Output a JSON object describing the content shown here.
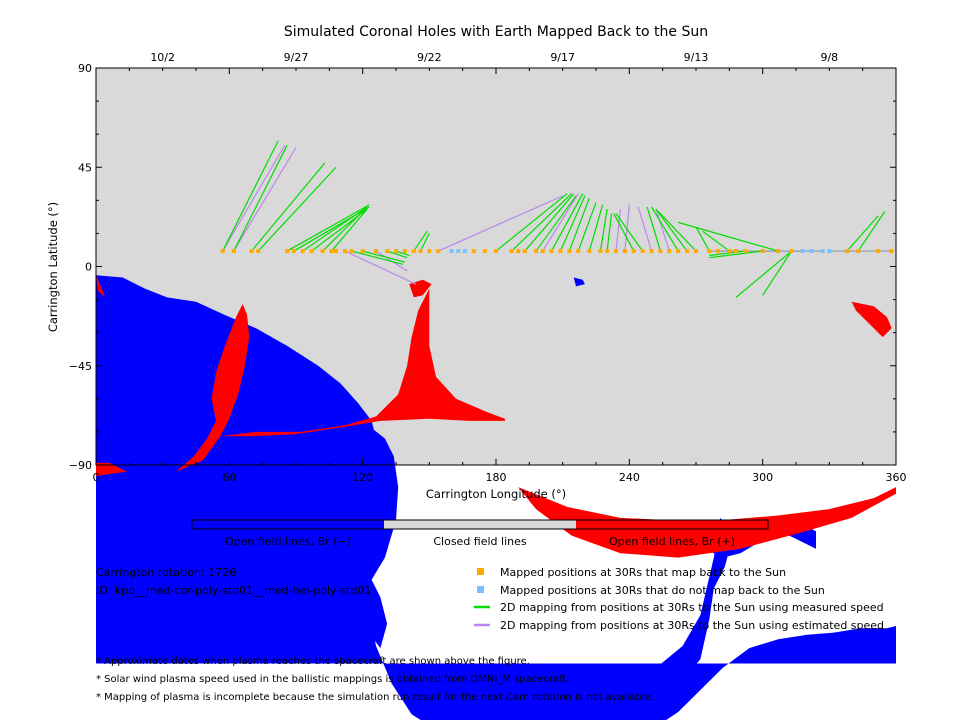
{
  "chart_data": {
    "type": "map",
    "title": "Simulated Coronal Holes with Earth Mapped Back to the Sun",
    "xlabel": "Carrington Longitude (°)",
    "ylabel": "Carrington Latitude (°)",
    "xlim": [
      0,
      360
    ],
    "ylim": [
      -90,
      90
    ],
    "x_ticks": [
      "0",
      "60",
      "120",
      "180",
      "240",
      "300",
      "360"
    ],
    "y_ticks": [
      "−90",
      "−45",
      "0",
      "45",
      "90"
    ],
    "date_ticks": [
      {
        "label": "10/2",
        "lon": 30
      },
      {
        "label": "9/27",
        "lon": 90
      },
      {
        "label": "9/22",
        "lon": 150
      },
      {
        "label": "9/17",
        "lon": 210
      },
      {
        "label": "9/13",
        "lon": 270
      },
      {
        "label": "9/8",
        "lon": 330
      }
    ],
    "colors": {
      "open_negative": "#0000ff",
      "closed": "#d9d9d9",
      "open_positive": "#ff0000",
      "mapped": "#ffaa00",
      "not_mapped": "#7fbfff",
      "measured": "#00dd00",
      "estimated": "#bb88ee"
    },
    "legend_bar": {
      "open_negative_label": "Open field lines, Br (−)",
      "closed_label": "Closed field lines",
      "open_positive_label": "Open field lines, Br (+)"
    },
    "spacecraft_latitude": 7,
    "mapped_lons": [
      57,
      62,
      70,
      73,
      86,
      89,
      93,
      97,
      102,
      106,
      108,
      112,
      115,
      120,
      126,
      131,
      135,
      139,
      143,
      146,
      150,
      154,
      170,
      175,
      180,
      187,
      190,
      193,
      198,
      201,
      205,
      209,
      213,
      217,
      222,
      227,
      230,
      234,
      238,
      242,
      246,
      250,
      254,
      258,
      262,
      266,
      270,
      276,
      280,
      285,
      288,
      292,
      300,
      307,
      313,
      338,
      343,
      352,
      358
    ],
    "not_mapped_lons": [
      160,
      163,
      166,
      318,
      322,
      327,
      330
    ],
    "measured_mappings": [
      [
        57,
        7,
        82,
        57
      ],
      [
        62,
        7,
        86,
        55
      ],
      [
        70,
        7,
        103,
        47
      ],
      [
        73,
        7,
        108,
        45
      ],
      [
        86,
        7,
        123,
        28
      ],
      [
        89,
        7,
        123,
        27
      ],
      [
        93,
        7,
        122,
        27
      ],
      [
        97,
        7,
        122,
        26
      ],
      [
        102,
        7,
        121,
        26
      ],
      [
        106,
        7,
        122,
        26
      ],
      [
        115,
        7,
        138,
        1
      ],
      [
        120,
        7,
        139,
        2
      ],
      [
        131,
        7,
        140,
        4
      ],
      [
        135,
        7,
        141,
        5
      ],
      [
        143,
        7,
        149,
        16
      ],
      [
        146,
        7,
        150,
        15
      ],
      [
        180,
        7,
        212,
        33
      ],
      [
        187,
        7,
        214,
        33
      ],
      [
        193,
        7,
        215,
        33
      ],
      [
        198,
        7,
        216,
        32
      ],
      [
        205,
        7,
        219,
        33
      ],
      [
        209,
        7,
        220,
        32
      ],
      [
        213,
        7,
        222,
        31
      ],
      [
        217,
        7,
        225,
        29
      ],
      [
        222,
        7,
        228,
        28
      ],
      [
        227,
        7,
        230,
        26
      ],
      [
        230,
        7,
        232,
        24
      ],
      [
        242,
        7,
        233,
        24
      ],
      [
        246,
        7,
        234,
        24
      ],
      [
        254,
        7,
        248,
        27
      ],
      [
        262,
        7,
        250,
        27
      ],
      [
        266,
        7,
        252,
        26
      ],
      [
        270,
        7,
        253,
        25
      ],
      [
        276,
        7,
        270,
        18
      ],
      [
        285,
        7,
        273,
        16
      ],
      [
        307,
        7,
        262,
        20
      ],
      [
        292,
        7,
        276,
        5
      ],
      [
        300,
        7,
        276,
        4
      ],
      [
        313,
        7,
        288,
        -14
      ],
      [
        313,
        7,
        300,
        -13
      ],
      [
        343,
        7,
        355,
        25
      ],
      [
        338,
        7,
        352,
        23
      ]
    ],
    "estimated_mappings": [
      [
        57,
        7,
        85,
        55
      ],
      [
        62,
        7,
        90,
        54
      ],
      [
        112,
        7,
        144,
        -8
      ],
      [
        126,
        7,
        140,
        -2
      ],
      [
        154,
        7,
        210,
        32
      ],
      [
        201,
        7,
        217,
        33
      ],
      [
        234,
        7,
        236,
        26
      ],
      [
        238,
        7,
        240,
        28
      ],
      [
        250,
        7,
        244,
        27
      ],
      [
        258,
        7,
        252,
        26
      ]
    ],
    "gray_mappings": [
      [
        276,
        7,
        318,
        7
      ],
      [
        280,
        7,
        322,
        7
      ],
      [
        288,
        7,
        327,
        7
      ],
      [
        358,
        7,
        330,
        7
      ]
    ],
    "negative_regions": [
      [
        [
          0,
          94
        ],
        [
          12,
          95
        ],
        [
          22,
          100
        ],
        [
          32,
          104
        ],
        [
          45,
          106
        ],
        [
          58,
          112
        ],
        [
          72,
          118
        ],
        [
          86,
          126
        ],
        [
          100,
          135
        ],
        [
          110,
          143
        ],
        [
          118,
          152
        ],
        [
          124,
          160
        ],
        [
          125,
          164
        ],
        [
          130,
          168
        ],
        [
          134,
          176
        ],
        [
          136,
          190
        ],
        [
          135,
          205
        ],
        [
          130,
          222
        ],
        [
          124,
          232
        ],
        [
          123,
          246
        ],
        [
          126,
          262
        ],
        [
          133,
          279
        ],
        [
          142,
          293
        ],
        [
          156,
          302
        ],
        [
          172,
          308
        ],
        [
          190,
          312
        ],
        [
          206,
          312
        ],
        [
          220,
          312
        ],
        [
          230,
          310
        ],
        [
          240,
          306
        ],
        [
          250,
          300
        ],
        [
          262,
          292
        ],
        [
          272,
          282
        ],
        [
          282,
          272
        ],
        [
          294,
          263
        ],
        [
          307,
          259
        ],
        [
          320,
          257
        ],
        [
          332,
          256
        ],
        [
          344,
          254
        ],
        [
          356,
          254
        ],
        [
          360,
          253
        ],
        [
          360,
          270
        ],
        [
          0,
          270
        ]
      ],
      [
        [
          124,
          232
        ],
        [
          128,
          240
        ],
        [
          131,
          252
        ],
        [
          128,
          263
        ],
        [
          122,
          255
        ],
        [
          116,
          242
        ],
        [
          108,
          232
        ],
        [
          118,
          232
        ]
      ],
      [
        [
          212,
          300
        ],
        [
          220,
          296
        ],
        [
          232,
          294
        ],
        [
          244,
          292
        ],
        [
          256,
          288
        ],
        [
          262,
          280
        ],
        [
          272,
          268
        ],
        [
          276,
          250
        ],
        [
          278,
          236
        ],
        [
          283,
          226
        ],
        [
          287,
          211
        ],
        [
          281,
          204
        ],
        [
          278,
          222
        ],
        [
          272,
          248
        ],
        [
          264,
          262
        ],
        [
          252,
          272
        ],
        [
          240,
          277
        ],
        [
          228,
          280
        ],
        [
          218,
          285
        ],
        [
          212,
          292
        ]
      ],
      [
        [
          272,
          217
        ],
        [
          284,
          206
        ],
        [
          300,
          204
        ],
        [
          314,
          205
        ],
        [
          324,
          210
        ],
        [
          324,
          218
        ],
        [
          312,
          212
        ],
        [
          300,
          214
        ],
        [
          290,
          220
        ],
        [
          282,
          222
        ]
      ],
      [
        [
          215,
          95
        ],
        [
          219,
          96
        ],
        [
          220,
          98
        ],
        [
          216,
          99
        ]
      ],
      [
        [
          42,
          115
        ],
        [
          46,
          114
        ],
        [
          48,
          116
        ],
        [
          44,
          117
        ]
      ]
    ],
    "positive_regions": [
      [
        [
          0,
          94
        ],
        [
          3,
          101
        ],
        [
          4,
          104
        ],
        [
          1,
          101
        ]
      ],
      [
        [
          0,
          179
        ],
        [
          6,
          179
        ],
        [
          14,
          183
        ],
        [
          0,
          185
        ]
      ],
      [
        [
          36,
          183
        ],
        [
          48,
          178
        ],
        [
          56,
          167
        ],
        [
          60,
          159
        ],
        [
          64,
          148
        ],
        [
          67,
          135
        ],
        [
          69,
          122
        ],
        [
          68,
          112
        ],
        [
          66,
          107
        ],
        [
          63,
          113
        ],
        [
          58,
          126
        ],
        [
          54,
          138
        ],
        [
          52,
          150
        ],
        [
          54,
          160
        ],
        [
          50,
          168
        ],
        [
          44,
          176
        ]
      ],
      [
        [
          56,
          167
        ],
        [
          72,
          165
        ],
        [
          92,
          165
        ],
        [
          112,
          162
        ],
        [
          126,
          158
        ],
        [
          136,
          148
        ],
        [
          140,
          135
        ],
        [
          142,
          122
        ],
        [
          145,
          110
        ],
        [
          150,
          100
        ],
        [
          150,
          112
        ],
        [
          150,
          126
        ],
        [
          153,
          140
        ],
        [
          162,
          150
        ],
        [
          176,
          156
        ],
        [
          184,
          159
        ],
        [
          184,
          160
        ],
        [
          168,
          160
        ],
        [
          150,
          159
        ],
        [
          128,
          160
        ],
        [
          110,
          163
        ],
        [
          90,
          166
        ],
        [
          70,
          167
        ]
      ],
      [
        [
          190,
          190
        ],
        [
          212,
          199
        ],
        [
          236,
          204
        ],
        [
          258,
          205
        ],
        [
          282,
          205
        ],
        [
          306,
          203
        ],
        [
          330,
          200
        ],
        [
          350,
          195
        ],
        [
          360,
          190
        ],
        [
          360,
          193
        ],
        [
          340,
          204
        ],
        [
          316,
          211
        ],
        [
          290,
          218
        ],
        [
          262,
          222
        ],
        [
          236,
          220
        ],
        [
          214,
          212
        ],
        [
          198,
          200
        ]
      ],
      [
        [
          340,
          106
        ],
        [
          350,
          108
        ],
        [
          356,
          113
        ],
        [
          358,
          118
        ],
        [
          354,
          122
        ],
        [
          348,
          116
        ],
        [
          342,
          110
        ]
      ],
      [
        [
          141,
          98
        ],
        [
          147,
          96
        ],
        [
          151,
          98
        ],
        [
          147,
          103
        ],
        [
          143,
          104
        ]
      ]
    ]
  },
  "footer": {
    "rotation": "Carrington rotation: 1726",
    "id": "ID: kpo__med-cor-poly-std01__med-hel-poly-std01",
    "legend_mapped": "Mapped positions at 30Rs that map back to the Sun",
    "legend_not_mapped": "Mapped positions at 30Rs that do not map back to the Sun",
    "legend_measured": "2D mapping from positions at 30Rs to the Sun using measured speed",
    "legend_estimated": "2D mapping from positions at 30Rs to the Sun using estimated speed",
    "note1": "* Approximate dates when plasma reaches the spacecraft are shown above the figure.",
    "note2": "* Solar wind plasma speed used in the ballistic mappings is obtained from OMNI_M spacecraft.",
    "note3": "* Mapping of plasma is incomplete because the simulation run result for the next Carr. rotation is not available."
  }
}
